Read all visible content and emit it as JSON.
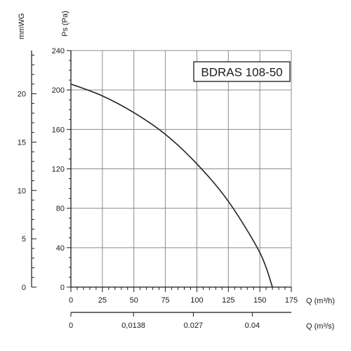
{
  "chart_data": {
    "type": "line",
    "model_label": "BDRAS 108-50",
    "x": [
      0,
      25,
      50,
      75,
      100,
      125,
      150,
      160
    ],
    "series": [
      {
        "values": [
          206,
          194,
          177,
          155,
          125,
          87,
          35,
          0
        ]
      }
    ],
    "x_axis": {
      "label": "Q (m³/h)",
      "range": [
        0,
        175
      ],
      "ticks": [
        "0",
        "25",
        "50",
        "75",
        "100",
        "125",
        "150",
        "175"
      ]
    },
    "x_axis_secondary": {
      "label": "Q (m³/s)",
      "ticks": [
        {
          "q": 0,
          "label": "0"
        },
        {
          "q": 49.68,
          "label": "0,0138"
        },
        {
          "q": 97.2,
          "label": "0.027"
        },
        {
          "q": 144,
          "label": "0.04"
        }
      ]
    },
    "y_axis": {
      "label": "Ps (Pa)",
      "range": [
        0,
        240
      ],
      "ticks": [
        "0",
        "40",
        "80",
        "120",
        "160",
        "200",
        "240"
      ]
    },
    "y_axis_secondary": {
      "label": "mmWG",
      "ticks": [
        "0",
        "5",
        "10",
        "15",
        "20"
      ]
    },
    "grid": true
  },
  "colors": {
    "curve": "#222222",
    "grid": "#8c8c8c",
    "axis": "#1a1a1a",
    "background": "#ffffff"
  }
}
